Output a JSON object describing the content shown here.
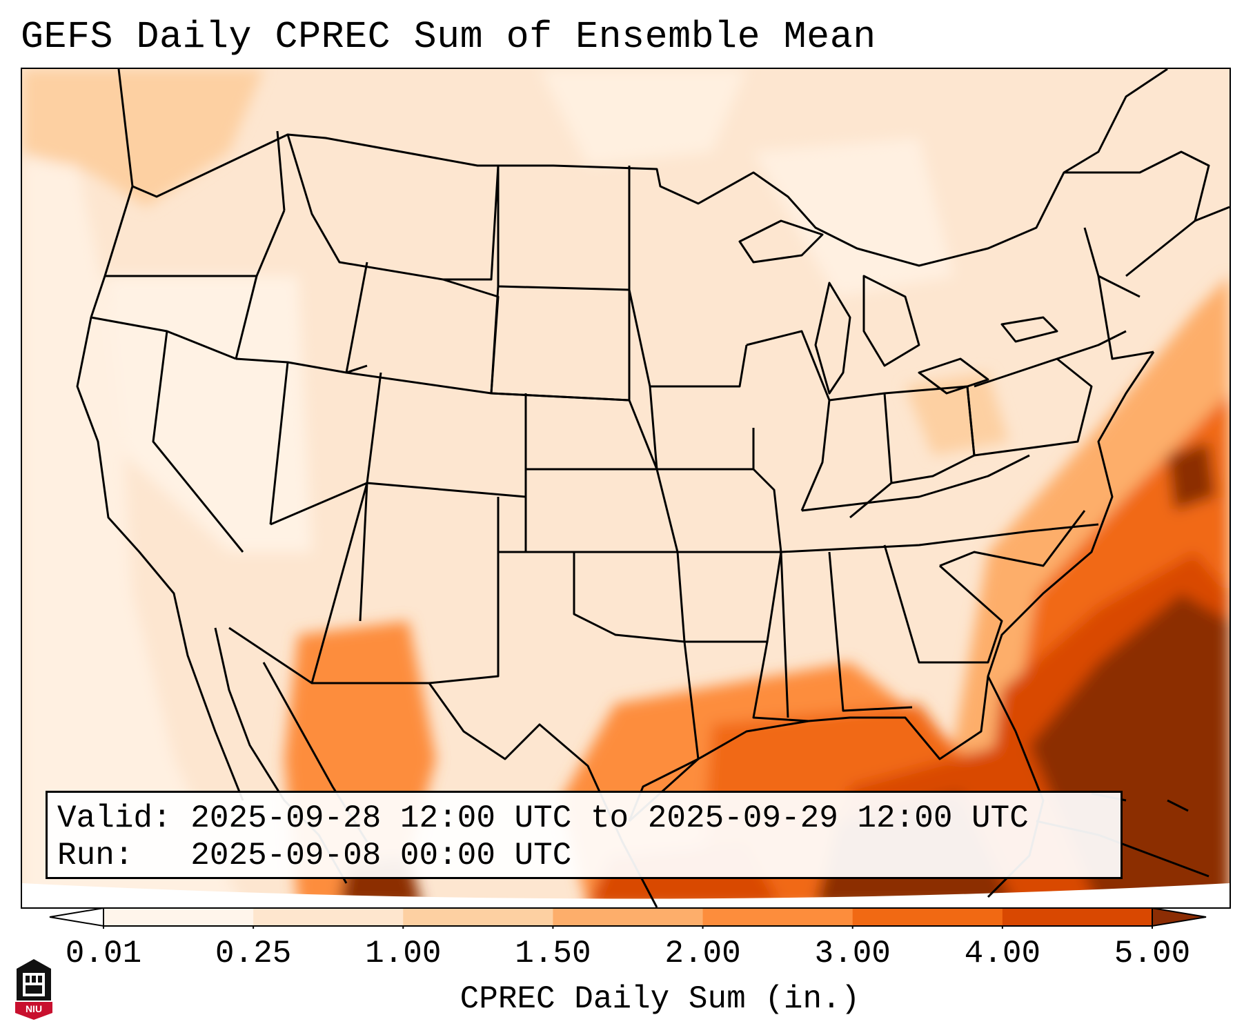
{
  "title": "GEFS Daily CPREC Sum of Ensemble Mean",
  "info": {
    "valid_label": "Valid:",
    "valid_value": "2025-09-28 12:00 UTC to 2025-09-29 12:00 UTC",
    "run_label": "Run:",
    "run_value": "2025-09-08 00:00 UTC"
  },
  "colorbar": {
    "label": "CPREC Daily Sum (in.)",
    "ticks": [
      "0.01",
      "0.25",
      "1.00",
      "1.50",
      "2.00",
      "3.00",
      "4.00",
      "5.00"
    ],
    "colors": [
      "#fff5eb",
      "#fee6ce",
      "#fdd0a2",
      "#fdae6b",
      "#fd8d3c",
      "#f16913",
      "#d94801",
      "#8c2d04"
    ]
  },
  "logo": {
    "text": "NIU",
    "color": "#c8102e"
  }
}
